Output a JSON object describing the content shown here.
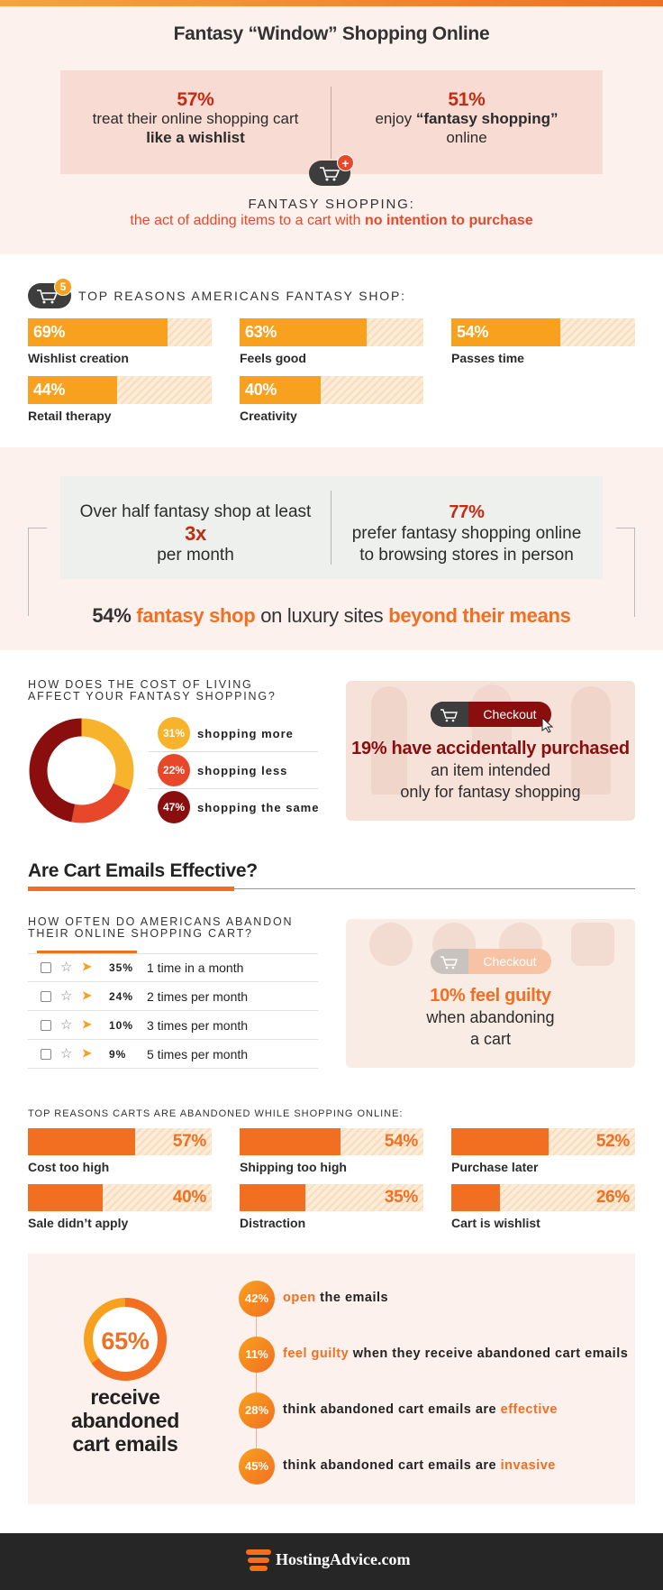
{
  "colors": {
    "orange": "#f26f21",
    "amber": "#f7a11f",
    "dark_red": "#8b0e0e",
    "red": "#e8482a",
    "peach": "#fdf1ed",
    "dark": "#262626"
  },
  "header": {
    "title": "Fantasy “Window” Shopping Online"
  },
  "intro": {
    "left_pct": "57%",
    "left_text": "treat their online shopping cart",
    "left_bold": "like a wishlist",
    "right_pct": "51%",
    "right_pre": "enjoy ",
    "right_bold": "“fantasy shopping”",
    "right_post": "online",
    "def_title": "FANTASY SHOPPING:",
    "def_text": "the act of adding items to a cart with ",
    "def_bold": "no intention to purchase",
    "badge": "+"
  },
  "reasons": {
    "badge": "5",
    "title": "TOP REASONS AMERICANS FANTASY SHOP:",
    "items": [
      {
        "pct": "69%",
        "value": 69,
        "label": "Wishlist creation"
      },
      {
        "pct": "63%",
        "value": 63,
        "label": "Feels good"
      },
      {
        "pct": "54%",
        "value": 54,
        "label": "Passes time"
      },
      {
        "pct": "44%",
        "value": 44,
        "label": "Retail therapy"
      },
      {
        "pct": "40%",
        "value": 40,
        "label": "Creativity"
      }
    ]
  },
  "frequency": {
    "left_text": "Over half fantasy shop at least",
    "left_big": "3x",
    "left_post": "per month",
    "right_pct": "77%",
    "right_text1": "prefer fantasy shopping online",
    "right_text2": "to browsing stores in person",
    "luxury_pct": "54%",
    "luxury_mid1": "fantasy shop",
    "luxury_mid2": " on luxury sites ",
    "luxury_end": "beyond their means"
  },
  "cost": {
    "title1": "HOW DOES THE COST OF LIVING",
    "title2": "AFFECT YOUR FANTASY SHOPPING?",
    "items": [
      {
        "pct": "31%",
        "label": "shopping more",
        "value": 31,
        "color": "#f7b32b"
      },
      {
        "pct": "22%",
        "label": "shopping less",
        "value": 22,
        "color": "#e8482a"
      },
      {
        "pct": "47%",
        "label": "shopping the same",
        "value": 47,
        "color": "#8b0e0e"
      }
    ],
    "checkout": "Checkout",
    "acc_bold": "19% have accidentally purchased",
    "acc_text1": "an item intended",
    "acc_text2": "only for fantasy shopping"
  },
  "emails_heading": "Are Cart Emails Effective?",
  "abandon": {
    "title1": "HOW OFTEN DO AMERICANS ABANDON",
    "title2": "THEIR ONLINE SHOPPING CART?",
    "rows": [
      {
        "pct": "35%",
        "label": "1 time in a month"
      },
      {
        "pct": "24%",
        "label": "2 times per month"
      },
      {
        "pct": "10%",
        "label": "3 times per month"
      },
      {
        "pct": "9%",
        "label": "5 times per month"
      }
    ],
    "checkout": "Checkout",
    "guilty_bold": "10% feel guilty",
    "guilty_text1": "when abandoning",
    "guilty_text2": "a cart"
  },
  "abandon_reasons": {
    "title": "TOP REASONS CARTS ARE ABANDONED WHILE SHOPPING ONLINE:",
    "items": [
      {
        "pct": "57%",
        "value": 57,
        "label": "Cost too high"
      },
      {
        "pct": "54%",
        "value": 54,
        "label": "Shipping too high"
      },
      {
        "pct": "52%",
        "value": 52,
        "label": "Purchase later"
      },
      {
        "pct": "40%",
        "value": 40,
        "label": "Sale didn’t apply"
      },
      {
        "pct": "35%",
        "value": 35,
        "label": "Distraction"
      },
      {
        "pct": "26%",
        "value": 26,
        "label": "Cart is wishlist"
      }
    ]
  },
  "receive": {
    "pct": "65%",
    "value": 65,
    "line1": "receive",
    "line2": "abandoned",
    "line3": "cart emails",
    "items": [
      {
        "pct": "42%",
        "hl": "open",
        "rest": " the emails",
        "hl_first": true
      },
      {
        "pct": "11%",
        "hl": "feel guilty",
        "rest": " when they receive abandoned cart emails",
        "hl_first": true
      },
      {
        "pct": "28%",
        "pre": "think abandoned cart emails are ",
        "hl": "effective",
        "hl_first": false
      },
      {
        "pct": "45%",
        "pre": "think abandoned cart emails are ",
        "hl": "invasive",
        "hl_first": false
      }
    ]
  },
  "footer": {
    "brand": "HostingAdvice.com"
  }
}
